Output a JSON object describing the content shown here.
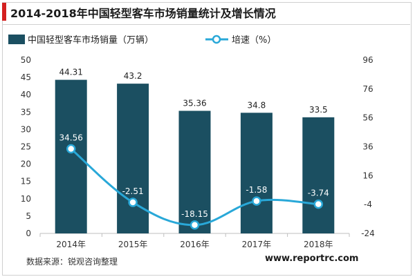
{
  "chart_data": {
    "type": "bar+line",
    "title": "2014-2018年中国轻型客车市场销量统计及增长情况",
    "categories": [
      "2014年",
      "2015年",
      "2016年",
      "2017年",
      "2018年"
    ],
    "series": [
      {
        "name": "中国轻型客车市场销量（万辆）",
        "type": "bar",
        "axis": "left",
        "color": "#1b4f61",
        "values": [
          44.31,
          43.2,
          35.36,
          34.8,
          33.5
        ],
        "labels": [
          "44.31",
          "43.2",
          "35.36",
          "34.8",
          "33.5"
        ]
      },
      {
        "name": "培速（%）",
        "type": "line",
        "axis": "right",
        "color": "#29a8d8",
        "values": [
          34.56,
          -2.51,
          -18.15,
          -1.58,
          -3.74
        ],
        "labels": [
          "34.56",
          "-2.51",
          "-18.15",
          "-1.58",
          "-3.74"
        ]
      }
    ],
    "y_left": {
      "min": 0,
      "max": 50,
      "ticks": [
        "0",
        "5",
        "10",
        "15",
        "20",
        "25",
        "30",
        "35",
        "40",
        "45",
        "50"
      ]
    },
    "y_right": {
      "min": -24,
      "max": 96,
      "ticks": [
        "-24",
        "-4",
        "16",
        "36",
        "56",
        "76",
        "96"
      ]
    },
    "grid": false,
    "legend_position": "top-left"
  },
  "footer": {
    "source": "数据来源：锐观咨询整理",
    "website": "www.reportrc.com"
  }
}
